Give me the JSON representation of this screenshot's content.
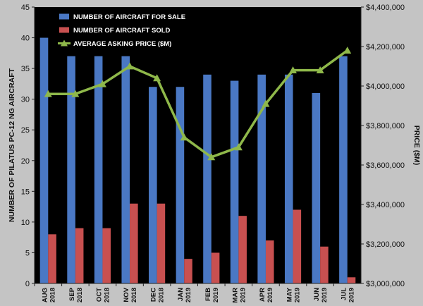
{
  "chart_data": {
    "type": "bar+line",
    "title": "",
    "categories": [
      [
        "AUG",
        "2018"
      ],
      [
        "SEP",
        "2018"
      ],
      [
        "OCT",
        "2018"
      ],
      [
        "NOV",
        "2018"
      ],
      [
        "DEC",
        "2018"
      ],
      [
        "JAN",
        "2019"
      ],
      [
        "FEB",
        "2019"
      ],
      [
        "MAR",
        "2019"
      ],
      [
        "APR",
        "2019"
      ],
      [
        "MAY",
        "2019"
      ],
      [
        "JUN",
        "2019"
      ],
      [
        "JUL",
        "2019"
      ]
    ],
    "series": [
      {
        "name": "NUMBER OF AIRCRAFT FOR SALE",
        "type": "bar",
        "axis": "left",
        "color": "#4a78c4",
        "values": [
          40,
          37,
          37,
          37,
          32,
          32,
          34,
          33,
          34,
          34,
          31,
          37
        ]
      },
      {
        "name": "NUMBER OF AIRCRAFT SOLD",
        "type": "bar",
        "axis": "left",
        "color": "#c85050",
        "values": [
          8,
          9,
          9,
          13,
          13,
          4,
          5,
          11,
          7,
          12,
          6,
          1
        ]
      },
      {
        "name": "AVERAGE ASKING PRICE ($M)",
        "type": "line",
        "axis": "right",
        "color": "#8fb84a",
        "values": [
          3960000,
          3960000,
          4010000,
          4100000,
          4040000,
          3740000,
          3640000,
          3690000,
          3910000,
          4080000,
          4080000,
          4180000
        ]
      }
    ],
    "ylabel": "NUMBER OF PILATUS PC-12 NG AIRCRAFT",
    "ylim": [
      0,
      45
    ],
    "yticks": [
      "0",
      "5",
      "10",
      "15",
      "20",
      "25",
      "30",
      "35",
      "40",
      "45"
    ],
    "y2label": "PRICE ($M)",
    "y2lim": [
      3000000,
      4400000
    ],
    "y2ticks": [
      "$3,000,000",
      "$3,200,000",
      "$3,400,000",
      "$3,600,000",
      "$3,800,000",
      "$4,000,000",
      "$4,200,000",
      "$4,400,000"
    ],
    "grid": false,
    "legend": "top-left",
    "colors": {
      "plot_background": "#000000",
      "page_background": "#c4c4c4"
    }
  }
}
